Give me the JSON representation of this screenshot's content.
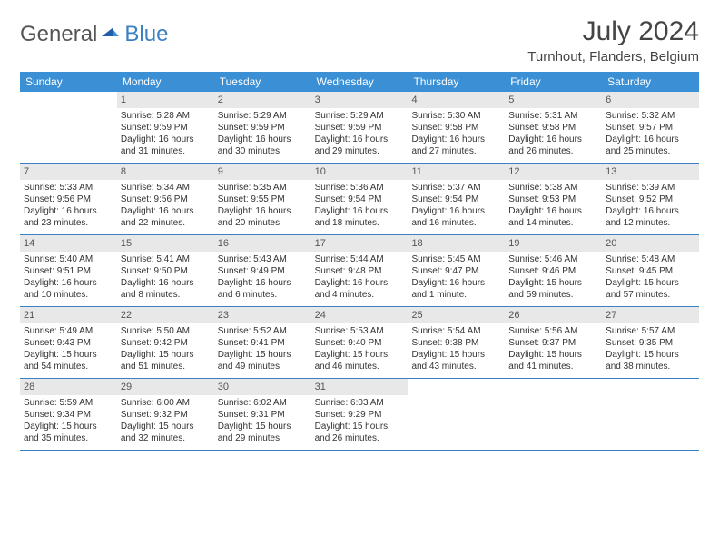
{
  "logo": {
    "general": "General",
    "blue": "Blue"
  },
  "title": "July 2024",
  "subtitle": "Turnhout, Flanders, Belgium",
  "colors": {
    "header_bg": "#3b8fd4",
    "header_text": "#ffffff",
    "daynum_bg": "#e8e8e8",
    "border": "#3b7fc4",
    "logo_blue": "#3b7fc4",
    "logo_gray": "#555555"
  },
  "weekdays": [
    "Sunday",
    "Monday",
    "Tuesday",
    "Wednesday",
    "Thursday",
    "Friday",
    "Saturday"
  ],
  "weeks": [
    [
      {
        "num": "",
        "sunrise": "",
        "sunset": "",
        "daylight": ""
      },
      {
        "num": "1",
        "sunrise": "Sunrise: 5:28 AM",
        "sunset": "Sunset: 9:59 PM",
        "daylight": "Daylight: 16 hours and 31 minutes."
      },
      {
        "num": "2",
        "sunrise": "Sunrise: 5:29 AM",
        "sunset": "Sunset: 9:59 PM",
        "daylight": "Daylight: 16 hours and 30 minutes."
      },
      {
        "num": "3",
        "sunrise": "Sunrise: 5:29 AM",
        "sunset": "Sunset: 9:59 PM",
        "daylight": "Daylight: 16 hours and 29 minutes."
      },
      {
        "num": "4",
        "sunrise": "Sunrise: 5:30 AM",
        "sunset": "Sunset: 9:58 PM",
        "daylight": "Daylight: 16 hours and 27 minutes."
      },
      {
        "num": "5",
        "sunrise": "Sunrise: 5:31 AM",
        "sunset": "Sunset: 9:58 PM",
        "daylight": "Daylight: 16 hours and 26 minutes."
      },
      {
        "num": "6",
        "sunrise": "Sunrise: 5:32 AM",
        "sunset": "Sunset: 9:57 PM",
        "daylight": "Daylight: 16 hours and 25 minutes."
      }
    ],
    [
      {
        "num": "7",
        "sunrise": "Sunrise: 5:33 AM",
        "sunset": "Sunset: 9:56 PM",
        "daylight": "Daylight: 16 hours and 23 minutes."
      },
      {
        "num": "8",
        "sunrise": "Sunrise: 5:34 AM",
        "sunset": "Sunset: 9:56 PM",
        "daylight": "Daylight: 16 hours and 22 minutes."
      },
      {
        "num": "9",
        "sunrise": "Sunrise: 5:35 AM",
        "sunset": "Sunset: 9:55 PM",
        "daylight": "Daylight: 16 hours and 20 minutes."
      },
      {
        "num": "10",
        "sunrise": "Sunrise: 5:36 AM",
        "sunset": "Sunset: 9:54 PM",
        "daylight": "Daylight: 16 hours and 18 minutes."
      },
      {
        "num": "11",
        "sunrise": "Sunrise: 5:37 AM",
        "sunset": "Sunset: 9:54 PM",
        "daylight": "Daylight: 16 hours and 16 minutes."
      },
      {
        "num": "12",
        "sunrise": "Sunrise: 5:38 AM",
        "sunset": "Sunset: 9:53 PM",
        "daylight": "Daylight: 16 hours and 14 minutes."
      },
      {
        "num": "13",
        "sunrise": "Sunrise: 5:39 AM",
        "sunset": "Sunset: 9:52 PM",
        "daylight": "Daylight: 16 hours and 12 minutes."
      }
    ],
    [
      {
        "num": "14",
        "sunrise": "Sunrise: 5:40 AM",
        "sunset": "Sunset: 9:51 PM",
        "daylight": "Daylight: 16 hours and 10 minutes."
      },
      {
        "num": "15",
        "sunrise": "Sunrise: 5:41 AM",
        "sunset": "Sunset: 9:50 PM",
        "daylight": "Daylight: 16 hours and 8 minutes."
      },
      {
        "num": "16",
        "sunrise": "Sunrise: 5:43 AM",
        "sunset": "Sunset: 9:49 PM",
        "daylight": "Daylight: 16 hours and 6 minutes."
      },
      {
        "num": "17",
        "sunrise": "Sunrise: 5:44 AM",
        "sunset": "Sunset: 9:48 PM",
        "daylight": "Daylight: 16 hours and 4 minutes."
      },
      {
        "num": "18",
        "sunrise": "Sunrise: 5:45 AM",
        "sunset": "Sunset: 9:47 PM",
        "daylight": "Daylight: 16 hours and 1 minute."
      },
      {
        "num": "19",
        "sunrise": "Sunrise: 5:46 AM",
        "sunset": "Sunset: 9:46 PM",
        "daylight": "Daylight: 15 hours and 59 minutes."
      },
      {
        "num": "20",
        "sunrise": "Sunrise: 5:48 AM",
        "sunset": "Sunset: 9:45 PM",
        "daylight": "Daylight: 15 hours and 57 minutes."
      }
    ],
    [
      {
        "num": "21",
        "sunrise": "Sunrise: 5:49 AM",
        "sunset": "Sunset: 9:43 PM",
        "daylight": "Daylight: 15 hours and 54 minutes."
      },
      {
        "num": "22",
        "sunrise": "Sunrise: 5:50 AM",
        "sunset": "Sunset: 9:42 PM",
        "daylight": "Daylight: 15 hours and 51 minutes."
      },
      {
        "num": "23",
        "sunrise": "Sunrise: 5:52 AM",
        "sunset": "Sunset: 9:41 PM",
        "daylight": "Daylight: 15 hours and 49 minutes."
      },
      {
        "num": "24",
        "sunrise": "Sunrise: 5:53 AM",
        "sunset": "Sunset: 9:40 PM",
        "daylight": "Daylight: 15 hours and 46 minutes."
      },
      {
        "num": "25",
        "sunrise": "Sunrise: 5:54 AM",
        "sunset": "Sunset: 9:38 PM",
        "daylight": "Daylight: 15 hours and 43 minutes."
      },
      {
        "num": "26",
        "sunrise": "Sunrise: 5:56 AM",
        "sunset": "Sunset: 9:37 PM",
        "daylight": "Daylight: 15 hours and 41 minutes."
      },
      {
        "num": "27",
        "sunrise": "Sunrise: 5:57 AM",
        "sunset": "Sunset: 9:35 PM",
        "daylight": "Daylight: 15 hours and 38 minutes."
      }
    ],
    [
      {
        "num": "28",
        "sunrise": "Sunrise: 5:59 AM",
        "sunset": "Sunset: 9:34 PM",
        "daylight": "Daylight: 15 hours and 35 minutes."
      },
      {
        "num": "29",
        "sunrise": "Sunrise: 6:00 AM",
        "sunset": "Sunset: 9:32 PM",
        "daylight": "Daylight: 15 hours and 32 minutes."
      },
      {
        "num": "30",
        "sunrise": "Sunrise: 6:02 AM",
        "sunset": "Sunset: 9:31 PM",
        "daylight": "Daylight: 15 hours and 29 minutes."
      },
      {
        "num": "31",
        "sunrise": "Sunrise: 6:03 AM",
        "sunset": "Sunset: 9:29 PM",
        "daylight": "Daylight: 15 hours and 26 minutes."
      },
      {
        "num": "",
        "sunrise": "",
        "sunset": "",
        "daylight": ""
      },
      {
        "num": "",
        "sunrise": "",
        "sunset": "",
        "daylight": ""
      },
      {
        "num": "",
        "sunrise": "",
        "sunset": "",
        "daylight": ""
      }
    ]
  ]
}
